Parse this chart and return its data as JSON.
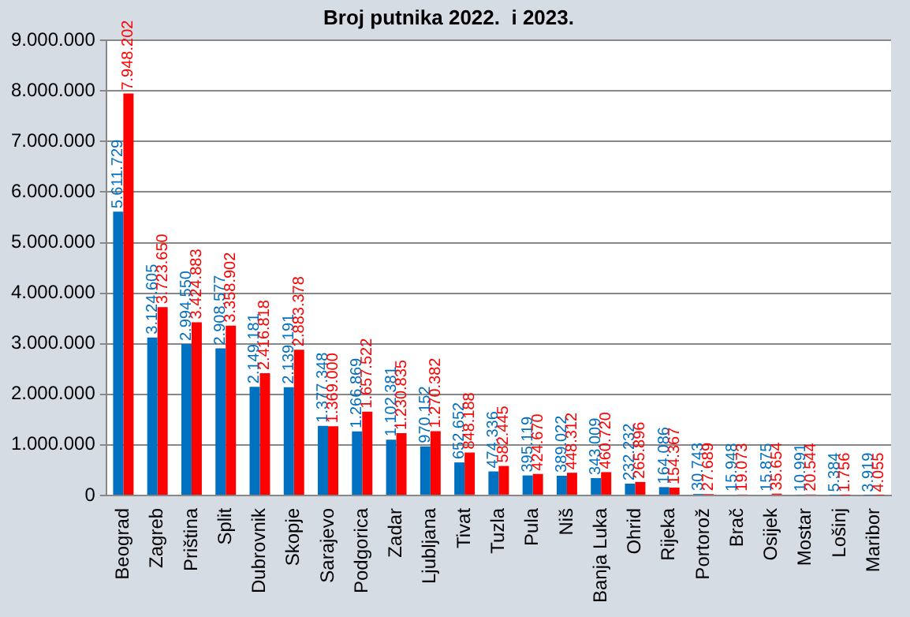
{
  "chart_data": {
    "type": "bar",
    "title": "Broj putnika 2022.  i 2023.",
    "categories": [
      "Beograd",
      "Zagreb",
      "Priština",
      "Split",
      "Dubrovnik",
      "Skopje",
      "Sarajevo",
      "Podgorica",
      "Zadar",
      "Ljubljana",
      "Tivat",
      "Tuzla",
      "Pula",
      "Niš",
      "Banja Luka",
      "Ohrid",
      "Rijeka",
      "Portorož",
      "Brač",
      "Osijek",
      "Mostar",
      "Lošinj",
      "Maribor"
    ],
    "series": [
      {
        "color": "#0070c0",
        "values": [
          5611729,
          3124605,
          2994550,
          2908577,
          2149181,
          2139191,
          1377348,
          1266869,
          1102381,
          970152,
          652652,
          474336,
          395119,
          389022,
          343009,
          232232,
          164086,
          30743,
          15948,
          15875,
          10991,
          5384,
          3919
        ],
        "value_labels": [
          "5.611.729",
          "3.124.605",
          "2.994.550",
          "2.908.577",
          "2.149.181",
          "2.139.191",
          "1.377.348",
          "1.266.869",
          "1.102.381",
          "970.152",
          "652.652",
          "474.336",
          "395.119",
          "389.022",
          "343.009",
          "232.232",
          "164.086",
          "30.743",
          "15.948",
          "15.875",
          "10.991",
          "5.384",
          "3.919"
        ]
      },
      {
        "color": "#ff0000",
        "values": [
          7948202,
          3723650,
          3424883,
          3358902,
          2416818,
          2883378,
          1369000,
          1657522,
          1230835,
          1270382,
          848188,
          582445,
          424670,
          448312,
          460720,
          265896,
          154367,
          27689,
          19073,
          35654,
          20544,
          1756,
          4055
        ],
        "value_labels": [
          "7.948.202",
          "3.723.650",
          "3.424.883",
          "3.358.902",
          "2.416.818",
          "2.883.378",
          "1.369.000",
          "1.657.522",
          "1.230.835",
          "1.270.382",
          "848.188",
          "582.445",
          "424.670",
          "448.312",
          "460.720",
          "265.896",
          "154.367",
          "27.689",
          "19.073",
          "35.654",
          "20.544",
          "1.756",
          "4.055"
        ]
      }
    ],
    "ylim": [
      0,
      9000000
    ],
    "yticks": [
      0,
      {
        "value": 1000000,
        "label": "1.000.000"
      },
      {
        "value": 2000000,
        "label": "2.000.000"
      },
      {
        "value": 3000000,
        "label": "3.000.000"
      },
      {
        "value": 4000000,
        "label": "4.000.000"
      },
      {
        "value": 5000000,
        "label": "5.000.000"
      },
      {
        "value": 6000000,
        "label": "6.000.000"
      },
      {
        "value": 7000000,
        "label": "7.000.000"
      },
      {
        "value": 8000000,
        "label": "8.000.000"
      },
      {
        "value": 9000000,
        "label": "9.000.000"
      }
    ],
    "grid": "y",
    "legend": false
  }
}
